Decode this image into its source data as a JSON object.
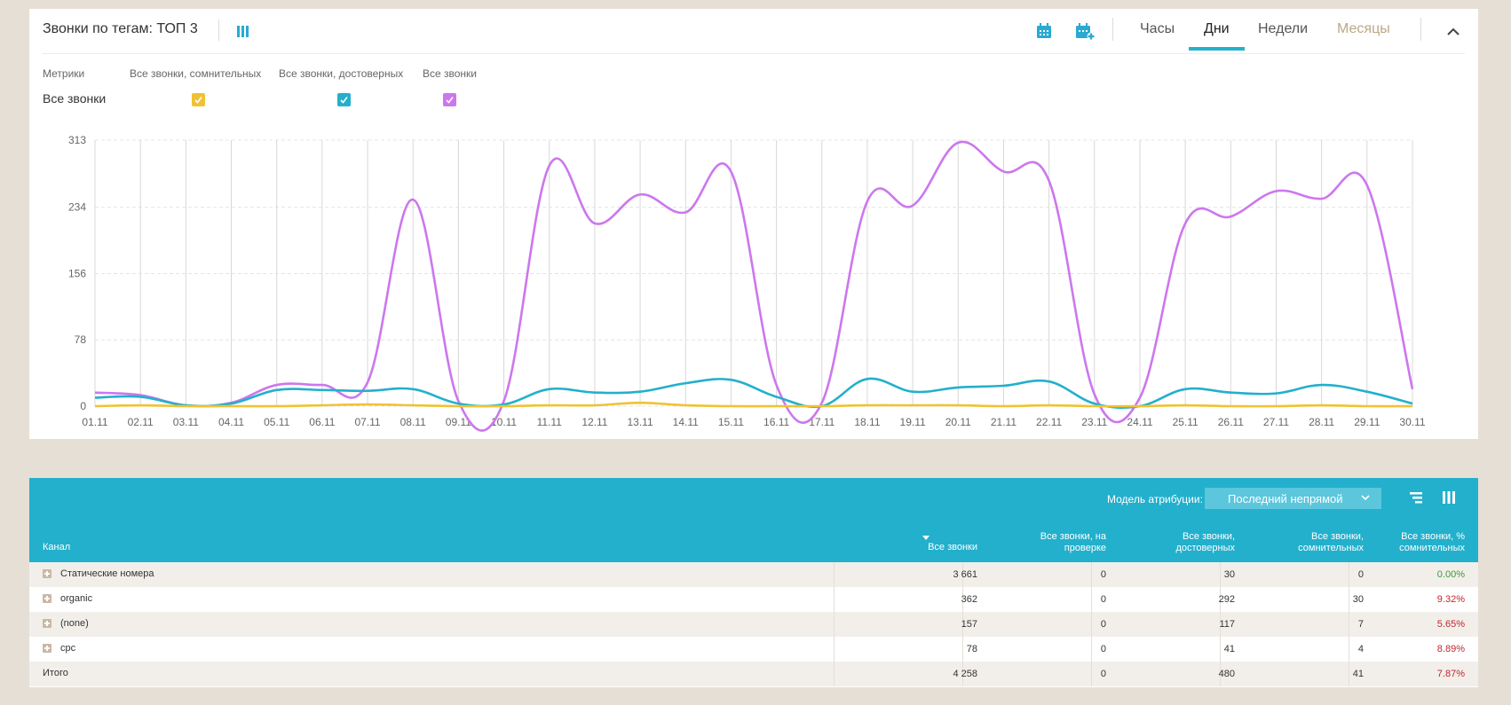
{
  "chart_panel": {
    "title": "Звонки по тегам: ТОП 3",
    "period_tabs": [
      {
        "label": "Часы",
        "state": "normal"
      },
      {
        "label": "Дни",
        "state": "active"
      },
      {
        "label": "Недели",
        "state": "normal"
      },
      {
        "label": "Месяцы",
        "state": "disabled"
      }
    ],
    "metrics_label": "Метрики",
    "metric_columns": [
      "Все звонки, сомнительных",
      "Все звонки, достоверных",
      "Все звонки"
    ],
    "row_label": "Все звонки",
    "checkbox_colors": [
      "#f0c233",
      "#23b0cc",
      "#cc77ee"
    ]
  },
  "chart_data": {
    "type": "line",
    "x": [
      "01.11",
      "02.11",
      "03.11",
      "04.11",
      "05.11",
      "06.11",
      "07.11",
      "08.11",
      "09.11",
      "10.11",
      "11.11",
      "12.11",
      "13.11",
      "14.11",
      "15.11",
      "16.11",
      "17.11",
      "18.11",
      "19.11",
      "20.11",
      "21.11",
      "22.11",
      "23.11",
      "24.11",
      "25.11",
      "26.11",
      "27.11",
      "28.11",
      "29.11",
      "30.11"
    ],
    "yticks": [
      0,
      78,
      156,
      234,
      313
    ],
    "ylim": [
      0,
      313
    ],
    "grid": true,
    "series": [
      {
        "color": "#cc77ee",
        "values": [
          16,
          13,
          1,
          4,
          25,
          25,
          28,
          243,
          6,
          6,
          283,
          215,
          249,
          228,
          276,
          25,
          4,
          241,
          236,
          310,
          276,
          265,
          14,
          10,
          215,
          223,
          253,
          244,
          260,
          20
        ]
      },
      {
        "color": "#23b0cc",
        "values": [
          10,
          11,
          1,
          3,
          19,
          19,
          18,
          20,
          3,
          2,
          20,
          16,
          17,
          27,
          31,
          11,
          0,
          32,
          17,
          22,
          24,
          29,
          3,
          0,
          20,
          16,
          15,
          25,
          17,
          3
        ]
      },
      {
        "color": "#f0c233",
        "values": [
          0,
          1,
          0,
          0,
          0,
          1,
          2,
          1,
          0,
          0,
          1,
          1,
          4,
          1,
          0,
          0,
          0,
          1,
          1,
          1,
          0,
          1,
          0,
          0,
          1,
          0,
          0,
          1,
          0,
          0
        ]
      }
    ]
  },
  "table": {
    "attribution_label": "Модель атрибуции:",
    "attribution_value": "Последний непрямой",
    "headers": [
      "Канал",
      "Все звонки",
      "Все звонки, на проверке",
      "Все звонки, достоверных",
      "Все звонки, сомнительных",
      "Все звонки, % сомнительных"
    ],
    "rows": [
      {
        "name": "Статические номера",
        "values": [
          "3 661",
          "0",
          "30",
          "0",
          "0.00%"
        ],
        "pct_color": "green"
      },
      {
        "name": "organic",
        "values": [
          "362",
          "0",
          "292",
          "30",
          "9.32%"
        ],
        "pct_color": "red"
      },
      {
        "name": "(none)",
        "values": [
          "157",
          "0",
          "117",
          "7",
          "5.65%"
        ],
        "pct_color": "red"
      },
      {
        "name": "cpc",
        "values": [
          "78",
          "0",
          "41",
          "4",
          "8.89%"
        ],
        "pct_color": "red"
      }
    ],
    "total": {
      "name": "Итого",
      "values": [
        "4 258",
        "0",
        "480",
        "41",
        "7.87%"
      ]
    }
  }
}
